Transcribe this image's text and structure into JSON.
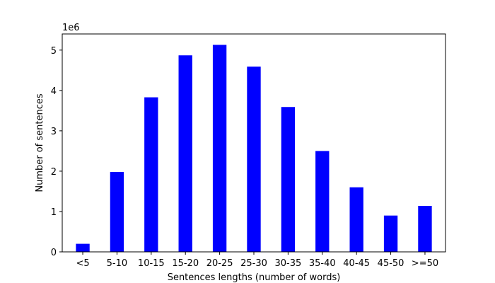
{
  "chart_data": {
    "type": "bar",
    "title": "",
    "xlabel": "Sentences lengths (number of words)",
    "ylabel": "Number of sentences",
    "y_offset_label": "1e6",
    "categories": [
      "<5",
      "5-10",
      "10-15",
      "15-20",
      "20-25",
      "25-30",
      "30-35",
      "35-40",
      "40-45",
      "45-50",
      ">=50"
    ],
    "values": [
      0.2,
      1.98,
      3.83,
      4.87,
      5.13,
      4.59,
      3.59,
      2.5,
      1.6,
      0.9,
      1.14
    ],
    "ylim": [
      0,
      5.4
    ],
    "yticks": [
      0,
      1,
      2,
      3,
      4,
      5
    ],
    "bar_color": "#0000ff",
    "grid": false,
    "legend": "none"
  }
}
